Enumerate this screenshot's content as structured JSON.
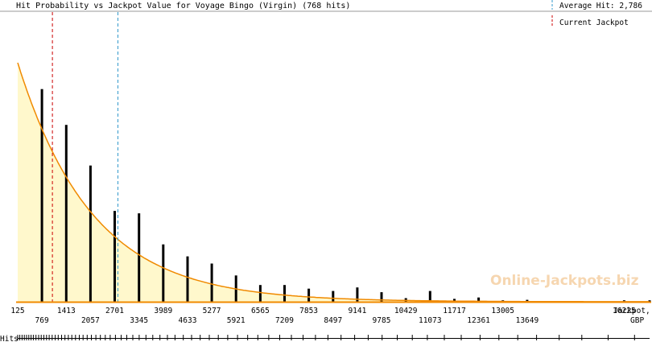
{
  "chart_data": {
    "type": "bar",
    "title": "Hit Probability vs Jackpot Value for Voyage Bingo (Virgin) (768 hits)",
    "xlabel": "Jackpot,",
    "xunit": "GBP",
    "hits_label": "Hits",
    "watermark": "Online-Jackpots.biz",
    "xlim": [
      125,
      16900
    ],
    "ylim": [
      0,
      100
    ],
    "x_ticks_upper": [
      "125",
      "1413",
      "2701",
      "3989",
      "5277",
      "6565",
      "7853",
      "9141",
      "10429",
      "11717",
      "13005",
      "16225"
    ],
    "x_ticks_lower": [
      "769",
      "2057",
      "3345",
      "4633",
      "5921",
      "7209",
      "8497",
      "9785",
      "11073",
      "12361",
      "13649"
    ],
    "bars": [
      {
        "x": 769,
        "y": 89
      },
      {
        "x": 1413,
        "y": 74
      },
      {
        "x": 2057,
        "y": 57
      },
      {
        "x": 2701,
        "y": 38
      },
      {
        "x": 3345,
        "y": 37
      },
      {
        "x": 3989,
        "y": 24
      },
      {
        "x": 4633,
        "y": 19
      },
      {
        "x": 5277,
        "y": 16
      },
      {
        "x": 5921,
        "y": 11
      },
      {
        "x": 6565,
        "y": 7
      },
      {
        "x": 7209,
        "y": 7
      },
      {
        "x": 7853,
        "y": 5.5
      },
      {
        "x": 8497,
        "y": 4.5
      },
      {
        "x": 9141,
        "y": 6
      },
      {
        "x": 9785,
        "y": 4
      },
      {
        "x": 10429,
        "y": 1.5
      },
      {
        "x": 11073,
        "y": 4.5
      },
      {
        "x": 11717,
        "y": 1.2
      },
      {
        "x": 12361,
        "y": 1.8
      },
      {
        "x": 13005,
        "y": 0.6
      },
      {
        "x": 13649,
        "y": 0.8
      },
      {
        "x": 16225,
        "y": 0.6
      },
      {
        "x": 16900,
        "y": 0.6
      }
    ],
    "curve": {
      "type": "exponential",
      "y0": 100,
      "x0": 125,
      "decay_per_gbp": 0.000505
    },
    "markers": [
      {
        "name": "Average Hit: 2,786",
        "x": 2786,
        "color": "#3399cc"
      },
      {
        "name": "Current Jackpot",
        "x": 1045,
        "color": "#cc0000"
      }
    ],
    "hit_values": [
      125,
      180,
      240,
      300,
      360,
      420,
      480,
      540,
      610,
      680,
      750,
      820,
      890,
      960,
      1040,
      1120,
      1200,
      1290,
      1380,
      1470,
      1560,
      1660,
      1760,
      1860,
      1970,
      2080,
      2200,
      2320,
      2450,
      2580,
      2720,
      2870,
      3020,
      3180,
      3350,
      3530,
      3710,
      3900,
      4100,
      4300,
      4520,
      4740,
      4970,
      5210,
      5450,
      5700,
      5960,
      6230,
      6500,
      6790,
      7080,
      7390,
      7700,
      8030,
      8360,
      8710,
      9070,
      9430,
      9800,
      10200,
      10600,
      11000,
      11450,
      11900,
      12400,
      12900,
      13400,
      13900,
      14500,
      15100,
      15800,
      16500
    ]
  }
}
